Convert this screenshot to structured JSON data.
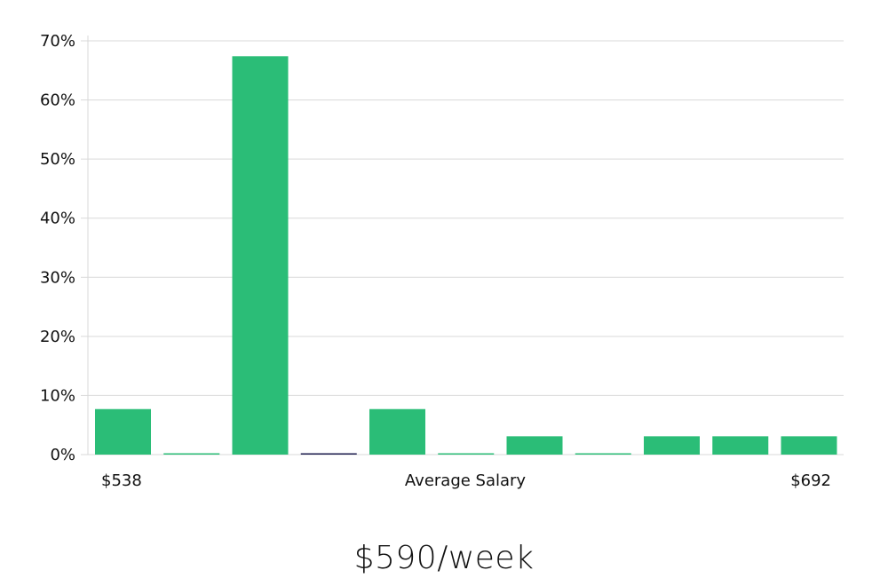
{
  "headline": "$590/week",
  "chart_data": {
    "type": "bar",
    "xlabel": "Average Salary",
    "x_min_label": "$538",
    "x_max_label": "$692",
    "ylim": [
      0,
      70
    ],
    "y_ticks": [
      "0%",
      "10%",
      "20%",
      "30%",
      "40%",
      "50%",
      "60%",
      "70%"
    ],
    "values": [
      7.7,
      0,
      67.4,
      0,
      7.7,
      0,
      3.1,
      0,
      3.1,
      3.1,
      3.1
    ],
    "highlight_index": 3,
    "grid": true,
    "colors": {
      "bar": "#2bbd77",
      "highlight": "#1d1d4f",
      "grid": "#d9d9d9"
    }
  }
}
